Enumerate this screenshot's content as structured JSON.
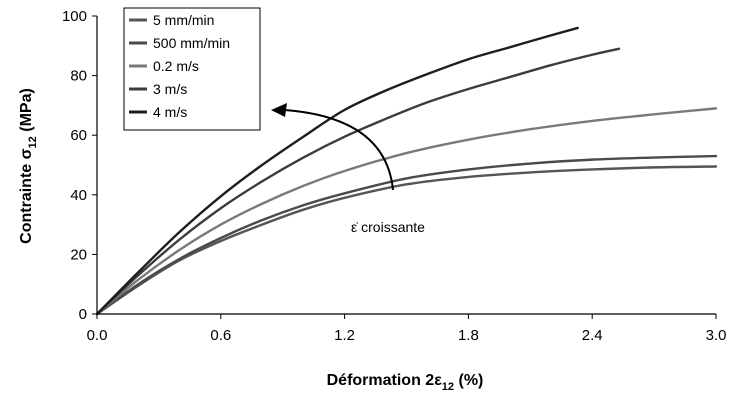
{
  "chart_data": {
    "type": "line",
    "xlabel": {
      "main": "Déformation 2ε",
      "sub": "12",
      "suffix": " (%)"
    },
    "ylabel": {
      "main": "Contrainte σ",
      "sub": "12",
      "suffix": " (MPa)"
    },
    "xlim": [
      0,
      3.0
    ],
    "ylim": [
      0,
      100
    ],
    "xticks": [
      "0.0",
      "0.6",
      "1.2",
      "1.8",
      "2.4",
      "3.0"
    ],
    "yticks": [
      "0",
      "20",
      "40",
      "60",
      "80",
      "100"
    ],
    "grid": false,
    "legend_position": "top-left",
    "series": [
      {
        "name": "5 mm/min",
        "color": "#555555",
        "x": [
          0,
          0.2,
          0.4,
          0.6,
          0.8,
          1.0,
          1.2,
          1.5,
          1.8,
          2.1,
          2.4,
          2.7,
          3.0
        ],
        "y": [
          0,
          9.5,
          18,
          24.5,
          30,
          35,
          39,
          43.5,
          46,
          47.5,
          48.5,
          49.2,
          49.5
        ]
      },
      {
        "name": "500 mm/min",
        "color": "#4a4a4a",
        "x": [
          0,
          0.2,
          0.4,
          0.6,
          0.8,
          1.0,
          1.2,
          1.5,
          1.8,
          2.1,
          2.4,
          2.7,
          3.0
        ],
        "y": [
          0,
          10,
          18.5,
          25.5,
          31.5,
          36.5,
          40.5,
          45.5,
          48.5,
          50.5,
          51.8,
          52.5,
          53
        ]
      },
      {
        "name": "0.2 m/s",
        "color": "#7a7a7a",
        "x": [
          0,
          0.2,
          0.4,
          0.6,
          0.8,
          1.0,
          1.2,
          1.5,
          1.8,
          2.1,
          2.4,
          2.7,
          3.0
        ],
        "y": [
          0,
          11.5,
          21.5,
          30,
          37,
          43,
          48,
          54,
          58.5,
          62,
          64.8,
          67,
          69
        ]
      },
      {
        "name": "3 m/s",
        "color": "#3c3c3c",
        "x": [
          0,
          0.2,
          0.4,
          0.6,
          0.8,
          1.0,
          1.2,
          1.4,
          1.6,
          1.8,
          2.0,
          2.2,
          2.4,
          2.53
        ],
        "y": [
          0,
          13,
          25,
          35.5,
          44.5,
          52.5,
          59.5,
          65.5,
          71,
          75.5,
          79.5,
          83.5,
          87,
          89
        ]
      },
      {
        "name": "4 m/s",
        "color": "#1e1e1e",
        "x": [
          0,
          0.2,
          0.4,
          0.6,
          0.8,
          1.0,
          1.2,
          1.4,
          1.6,
          1.8,
          2.0,
          2.2,
          2.33
        ],
        "y": [
          0,
          14,
          27.5,
          39.5,
          50,
          59.5,
          68.5,
          75,
          80.5,
          85.5,
          89.5,
          93.5,
          96
        ]
      }
    ],
    "annotation": {
      "text": "ε̇ croissante"
    }
  }
}
